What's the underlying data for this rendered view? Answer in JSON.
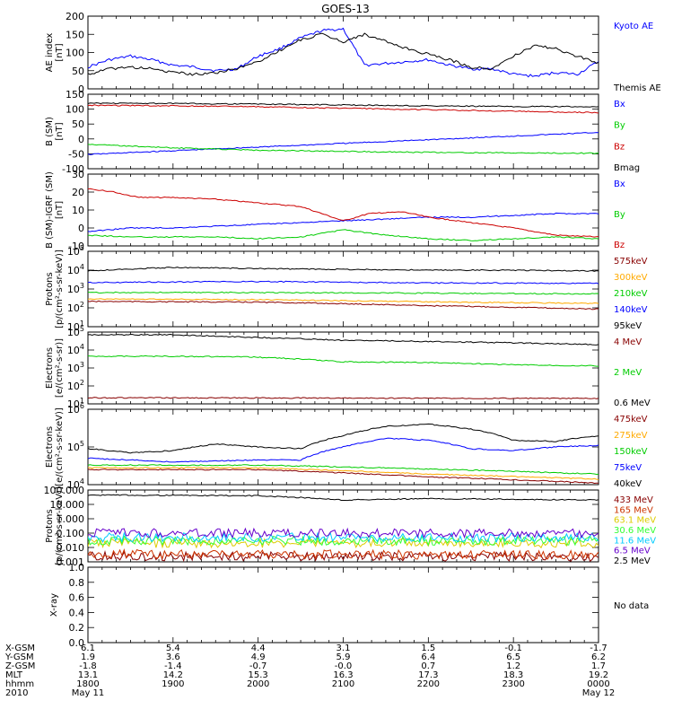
{
  "title": "GOES-13",
  "time_ticks": [
    "1800",
    "1900",
    "2000",
    "2100",
    "2200",
    "2300",
    "0000"
  ],
  "ephemeris": {
    "rows": [
      {
        "label": "X-GSM",
        "values": [
          "6.1",
          "5.4",
          "4.4",
          "3.1",
          "1.5",
          "-0.1",
          "-1.7"
        ]
      },
      {
        "label": "Y-GSM",
        "values": [
          "1.9",
          "3.6",
          "4.9",
          "5.9",
          "6.4",
          "6.5",
          "6.2"
        ]
      },
      {
        "label": "Z-GSM",
        "values": [
          "-1.8",
          "-1.4",
          "-0.7",
          "-0.0",
          "0.7",
          "1.2",
          "1.7"
        ]
      },
      {
        "label": "MLT",
        "values": [
          "13.1",
          "14.2",
          "15.3",
          "16.3",
          "17.3",
          "18.3",
          "19.2"
        ]
      },
      {
        "label": "hhmm",
        "values": [
          "1800",
          "1900",
          "2000",
          "2100",
          "2200",
          "2300",
          "0000"
        ]
      }
    ],
    "year": "2010",
    "date_start": "May 11",
    "date_end": "May 12"
  },
  "chart_data": [
    {
      "id": "ae",
      "type": "line",
      "ylabel": "AE index\n[nT]",
      "ylim": [
        0,
        200
      ],
      "ticks": [
        "0",
        "50",
        "100",
        "150",
        "200"
      ],
      "series": [
        {
          "name": "Kyoto AE",
          "color": "#0000ff",
          "x": [
            18.0,
            18.25,
            18.5,
            18.75,
            19.0,
            19.25,
            19.5,
            19.75,
            20.0,
            20.25,
            20.5,
            20.75,
            21.0,
            21.25,
            21.5,
            21.75,
            22.0,
            22.25,
            22.5,
            22.75,
            23.0,
            23.25,
            23.5,
            23.75,
            24.0
          ],
          "y": [
            60,
            80,
            90,
            80,
            65,
            60,
            50,
            55,
            90,
            110,
            140,
            160,
            165,
            65,
            70,
            75,
            80,
            65,
            55,
            55,
            40,
            35,
            45,
            40,
            75
          ]
        },
        {
          "name": "Themis AE",
          "color": "#000000",
          "x": [
            18.0,
            18.25,
            18.5,
            18.75,
            19.0,
            19.25,
            19.5,
            19.75,
            20.0,
            20.25,
            20.5,
            20.75,
            21.0,
            21.25,
            21.5,
            21.75,
            22.0,
            22.25,
            22.5,
            22.75,
            23.0,
            23.25,
            23.5,
            23.75,
            24.0
          ],
          "y": [
            40,
            55,
            60,
            55,
            45,
            40,
            45,
            55,
            75,
            105,
            135,
            150,
            130,
            150,
            130,
            110,
            95,
            80,
            60,
            55,
            90,
            120,
            110,
            90,
            70
          ]
        }
      ]
    },
    {
      "id": "bsm",
      "type": "line",
      "ylabel": "B (SM)\n[nT]",
      "ylim": [
        -100,
        150
      ],
      "ticks": [
        "-100",
        "-50",
        "0",
        "50",
        "100",
        "150"
      ],
      "series": [
        {
          "name": "Bx",
          "color": "#0000ff",
          "x": [
            18.0,
            24.0
          ],
          "y": [
            -52,
            22
          ]
        },
        {
          "name": "By",
          "color": "#00cc00",
          "x": [
            18.0,
            19.0,
            20.0,
            21.0,
            22.0,
            23.0,
            24.0
          ],
          "y": [
            -18,
            -30,
            -38,
            -42,
            -45,
            -47,
            -48
          ]
        },
        {
          "name": "Bz",
          "color": "#cc0000",
          "x": [
            18.0,
            19.0,
            20.0,
            21.0,
            22.0,
            23.0,
            24.0
          ],
          "y": [
            113,
            111,
            108,
            103,
            98,
            93,
            88
          ]
        },
        {
          "name": "Bmag",
          "color": "#000000",
          "x": [
            18.0,
            19.0,
            20.0,
            21.0,
            22.0,
            23.0,
            24.0
          ],
          "y": [
            120,
            119,
            117,
            114,
            111,
            109,
            108
          ]
        }
      ]
    },
    {
      "id": "bdiff",
      "type": "line",
      "ylabel": "B (SM)-IGRF (SM)\n[nT]",
      "ylim": [
        -10,
        30
      ],
      "ticks": [
        "-10",
        "0",
        "10",
        "20",
        "30"
      ],
      "series": [
        {
          "name": "Bx",
          "color": "#0000ff",
          "x": [
            18.0,
            18.5,
            19.0,
            19.5,
            20.0,
            20.5,
            21.0,
            21.5,
            22.0,
            22.5,
            23.0,
            23.5,
            24.0
          ],
          "y": [
            -2,
            0,
            0,
            1,
            2,
            3,
            4,
            5,
            6,
            6,
            7,
            8,
            8
          ]
        },
        {
          "name": "By",
          "color": "#00cc00",
          "x": [
            18.0,
            18.5,
            19.0,
            19.5,
            20.0,
            20.5,
            21.0,
            21.5,
            22.0,
            22.5,
            23.0,
            23.5,
            24.0
          ],
          "y": [
            -4,
            -5,
            -5,
            -5,
            -6,
            -5,
            -1,
            -4,
            -6,
            -7,
            -6,
            -5,
            -6
          ]
        },
        {
          "name": "Bz",
          "color": "#cc0000",
          "x": [
            18.0,
            18.3,
            18.6,
            19.0,
            19.5,
            20.0,
            20.5,
            21.0,
            21.3,
            21.7,
            22.0,
            22.5,
            23.0,
            23.5,
            24.0
          ],
          "y": [
            22,
            20,
            17,
            17,
            16,
            14,
            12,
            4,
            8,
            9,
            6,
            3,
            0,
            -4,
            -5
          ]
        }
      ]
    },
    {
      "id": "protons1",
      "type": "line",
      "scale": "log",
      "ylabel": "Protons\n[p/(cm²-s-sr-keV)]",
      "ylim": [
        10,
        100000
      ],
      "ticks": [
        "10^1",
        "10^2",
        "10^3",
        "10^4",
        "10^5"
      ],
      "series": [
        {
          "name": "575keV",
          "color": "#880000",
          "x": [
            18.0,
            20.0,
            22.0,
            24.0
          ],
          "y": [
            220,
            200,
            130,
            85
          ]
        },
        {
          "name": "300keV",
          "color": "#ffaa00",
          "x": [
            18.0,
            20.0,
            22.0,
            24.0
          ],
          "y": [
            300,
            270,
            210,
            170
          ]
        },
        {
          "name": "210keV",
          "color": "#00cc00",
          "x": [
            18.0,
            20.0,
            22.0,
            24.0
          ],
          "y": [
            650,
            650,
            600,
            550
          ]
        },
        {
          "name": "140keV",
          "color": "#0000ff",
          "x": [
            18.0,
            20.0,
            22.0,
            24.0
          ],
          "y": [
            2200,
            2500,
            2100,
            2000
          ]
        },
        {
          "name": "95keV",
          "color": "#000000",
          "x": [
            18.0,
            19.0,
            20.0,
            21.0,
            22.0,
            23.0,
            24.0
          ],
          "y": [
            9000,
            14000,
            12000,
            11000,
            10000,
            10000,
            9000
          ]
        }
      ]
    },
    {
      "id": "electrons1",
      "type": "line",
      "scale": "log",
      "ylabel": "Electrons\n[e/(cm²-s-sr)]",
      "ylim": [
        10,
        100000
      ],
      "ticks": [
        "10^1",
        "10^2",
        "10^3",
        "10^4",
        "10^5"
      ],
      "series": [
        {
          "name": "4 MeV",
          "color": "#880000",
          "x": [
            18.0,
            24.0
          ],
          "y": [
            22,
            20
          ]
        },
        {
          "name": "2 MeV",
          "color": "#00cc00",
          "x": [
            18.0,
            19.0,
            20.0,
            21.0,
            22.0,
            23.0,
            24.0
          ],
          "y": [
            4500,
            4500,
            4000,
            2200,
            2000,
            1500,
            1300
          ]
        },
        {
          "name": "0.6 MeV",
          "color": "#000000",
          "x": [
            18.0,
            19.0,
            20.0,
            21.0,
            22.0,
            23.0,
            24.0
          ],
          "y": [
            70000,
            70000,
            50000,
            35000,
            30000,
            25000,
            20000
          ]
        }
      ]
    },
    {
      "id": "electrons2",
      "type": "line",
      "scale": "log",
      "ylabel": "Electrons\n[e/(cm²-s-sr-keV)]",
      "ylim": [
        10000,
        1000000
      ],
      "ticks": [
        "10^4",
        "10^5",
        "10^6"
      ],
      "series": [
        {
          "name": "475keV",
          "color": "#880000",
          "x": [
            18.0,
            20.0,
            22.0,
            24.0
          ],
          "y": [
            25000,
            25000,
            16000,
            11000
          ]
        },
        {
          "name": "275keV",
          "color": "#ffaa00",
          "x": [
            18.0,
            20.0,
            22.0,
            24.0
          ],
          "y": [
            28000,
            28000,
            19000,
            14000
          ]
        },
        {
          "name": "150keV",
          "color": "#00cc00",
          "x": [
            18.0,
            20.0,
            22.0,
            24.0
          ],
          "y": [
            33000,
            33000,
            26000,
            19000
          ]
        },
        {
          "name": "75keV",
          "color": "#0000ff",
          "x": [
            18.0,
            19.0,
            20.0,
            20.5,
            21.0,
            21.5,
            22.0,
            22.5,
            23.0,
            23.5,
            24.0
          ],
          "y": [
            50000,
            40000,
            45000,
            45000,
            100000,
            170000,
            150000,
            90000,
            80000,
            100000,
            110000
          ]
        },
        {
          "name": "40keV",
          "color": "#000000",
          "x": [
            18.0,
            18.5,
            19.0,
            19.5,
            20.0,
            20.5,
            21.0,
            21.5,
            22.0,
            22.5,
            23.0,
            23.5,
            24.0
          ],
          "y": [
            90000,
            70000,
            80000,
            120000,
            100000,
            90000,
            200000,
            350000,
            400000,
            300000,
            150000,
            140000,
            200000
          ]
        }
      ]
    },
    {
      "id": "protons2",
      "type": "line",
      "scale": "log",
      "ylabel": "Protons\n[p/(cm²-s-sr-keV)]",
      "ylim": [
        0.001,
        100
      ],
      "ticks": [
        "0.001",
        "0.010",
        "0.100",
        "1.000",
        "10.000",
        "100.000"
      ],
      "series": [
        {
          "name": "433 MeV",
          "color": "#880000",
          "x": [
            18.0,
            24.0
          ],
          "y": [
            0.0025,
            0.0022
          ]
        },
        {
          "name": "165 MeV",
          "color": "#cc3300",
          "x": [
            18.0,
            24.0
          ],
          "y": [
            0.0035,
            0.003
          ]
        },
        {
          "name": "63.1 MeV",
          "color": "#ddcc00",
          "x": [
            18.0,
            24.0
          ],
          "y": [
            0.02,
            0.02
          ]
        },
        {
          "name": "30.6 MeV",
          "color": "#33ff33",
          "x": [
            18.0,
            24.0
          ],
          "y": [
            0.03,
            0.03
          ]
        },
        {
          "name": "11.6 MeV",
          "color": "#00ccff",
          "x": [
            18.0,
            24.0
          ],
          "y": [
            0.05,
            0.05
          ]
        },
        {
          "name": "6.5 MeV",
          "color": "#6600cc",
          "x": [
            18.0,
            24.0
          ],
          "y": [
            0.1,
            0.1
          ]
        },
        {
          "name": "2.5 MeV",
          "color": "#000000",
          "x": [
            18.0,
            20.0,
            21.0,
            22.0,
            24.0
          ],
          "y": [
            45,
            40,
            20,
            25,
            20
          ]
        }
      ]
    },
    {
      "id": "xray",
      "type": "line",
      "ylabel": "X-ray",
      "ylim": [
        0,
        1
      ],
      "ticks": [
        "0.0",
        "0.2",
        "0.4",
        "0.6",
        "0.8",
        "1.0"
      ],
      "series": [],
      "annotation": "No data"
    }
  ]
}
